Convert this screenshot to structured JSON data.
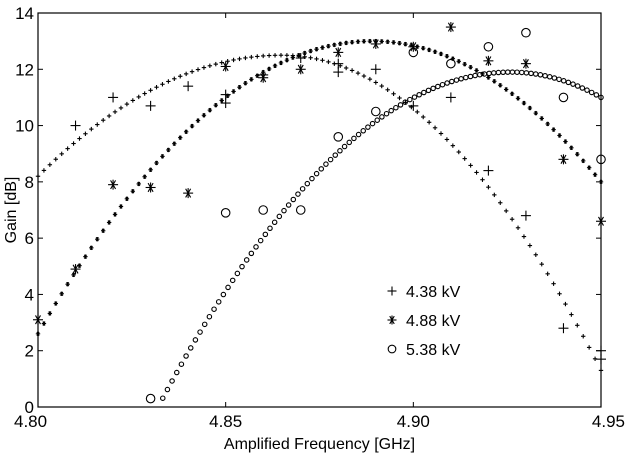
{
  "chart_data": {
    "type": "scatter",
    "xlabel": "Amplified Frequency [GHz]",
    "ylabel": "Gain [dB]",
    "xlim": [
      4.8,
      4.95
    ],
    "ylim": [
      0,
      14
    ],
    "xticks": [
      4.8,
      4.85,
      4.9,
      4.95
    ],
    "xtick_labels": [
      "4.80",
      "4.85",
      "4.90",
      "4.95"
    ],
    "yticks": [
      0,
      2,
      4,
      6,
      8,
      10,
      12,
      14
    ],
    "ytick_labels": [
      "0",
      "2",
      "4",
      "6",
      "8",
      "10",
      "12",
      "14"
    ],
    "grid": false,
    "legend_position": "bottom-right",
    "series": [
      {
        "name": "4.38 kV",
        "marker": "+",
        "measured": [
          {
            "x": 4.81,
            "y": 10.0
          },
          {
            "x": 4.82,
            "y": 11.0
          },
          {
            "x": 4.83,
            "y": 10.7
          },
          {
            "x": 4.84,
            "y": 11.4
          },
          {
            "x": 4.85,
            "y": 10.8
          },
          {
            "x": 4.85,
            "y": 11.1
          },
          {
            "x": 4.86,
            "y": 11.8
          },
          {
            "x": 4.87,
            "y": 12.4
          },
          {
            "x": 4.88,
            "y": 12.2
          },
          {
            "x": 4.88,
            "y": 11.9
          },
          {
            "x": 4.89,
            "y": 12.0
          },
          {
            "x": 4.9,
            "y": 10.7
          },
          {
            "x": 4.91,
            "y": 11.0
          },
          {
            "x": 4.92,
            "y": 8.4
          },
          {
            "x": 4.93,
            "y": 6.8
          },
          {
            "x": 4.94,
            "y": 2.8
          },
          {
            "x": 4.95,
            "y": 2.0
          },
          {
            "x": 4.95,
            "y": 1.7
          }
        ],
        "fit": {
          "x_start": 4.8,
          "x_end": 4.95,
          "peak_x": 4.865,
          "peak_y": 12.5,
          "left_y": 8.2,
          "right_y": 1.3
        }
      },
      {
        "name": "4.88 kV",
        "marker": "*",
        "measured": [
          {
            "x": 4.8,
            "y": 3.1
          },
          {
            "x": 4.81,
            "y": 4.9
          },
          {
            "x": 4.82,
            "y": 7.9
          },
          {
            "x": 4.83,
            "y": 7.8
          },
          {
            "x": 4.84,
            "y": 7.6
          },
          {
            "x": 4.85,
            "y": 12.1
          },
          {
            "x": 4.86,
            "y": 11.7
          },
          {
            "x": 4.87,
            "y": 12.0
          },
          {
            "x": 4.88,
            "y": 12.6
          },
          {
            "x": 4.89,
            "y": 12.9
          },
          {
            "x": 4.9,
            "y": 12.8
          },
          {
            "x": 4.91,
            "y": 13.5
          },
          {
            "x": 4.92,
            "y": 12.3
          },
          {
            "x": 4.93,
            "y": 12.2
          },
          {
            "x": 4.94,
            "y": 8.8
          },
          {
            "x": 4.95,
            "y": 6.6
          }
        ],
        "fit": {
          "x_start": 4.8,
          "x_end": 4.95,
          "peak_x": 4.889,
          "peak_y": 13.0,
          "left_y": 2.6,
          "right_y": 8.0
        }
      },
      {
        "name": "5.38 kV",
        "marker": "o",
        "measured": [
          {
            "x": 4.83,
            "y": 0.3
          },
          {
            "x": 4.85,
            "y": 6.9
          },
          {
            "x": 4.86,
            "y": 7.0
          },
          {
            "x": 4.87,
            "y": 7.0
          },
          {
            "x": 4.88,
            "y": 9.6
          },
          {
            "x": 4.89,
            "y": 10.5
          },
          {
            "x": 4.9,
            "y": 12.6
          },
          {
            "x": 4.91,
            "y": 12.2
          },
          {
            "x": 4.92,
            "y": 12.8
          },
          {
            "x": 4.93,
            "y": 13.3
          },
          {
            "x": 4.94,
            "y": 11.0
          },
          {
            "x": 4.95,
            "y": 8.8
          }
        ],
        "fit": {
          "x_start": 4.832,
          "x_end": 4.95,
          "peak_x": 4.926,
          "peak_y": 11.9,
          "left_y": 0.0,
          "right_y": 11.0
        }
      }
    ]
  }
}
